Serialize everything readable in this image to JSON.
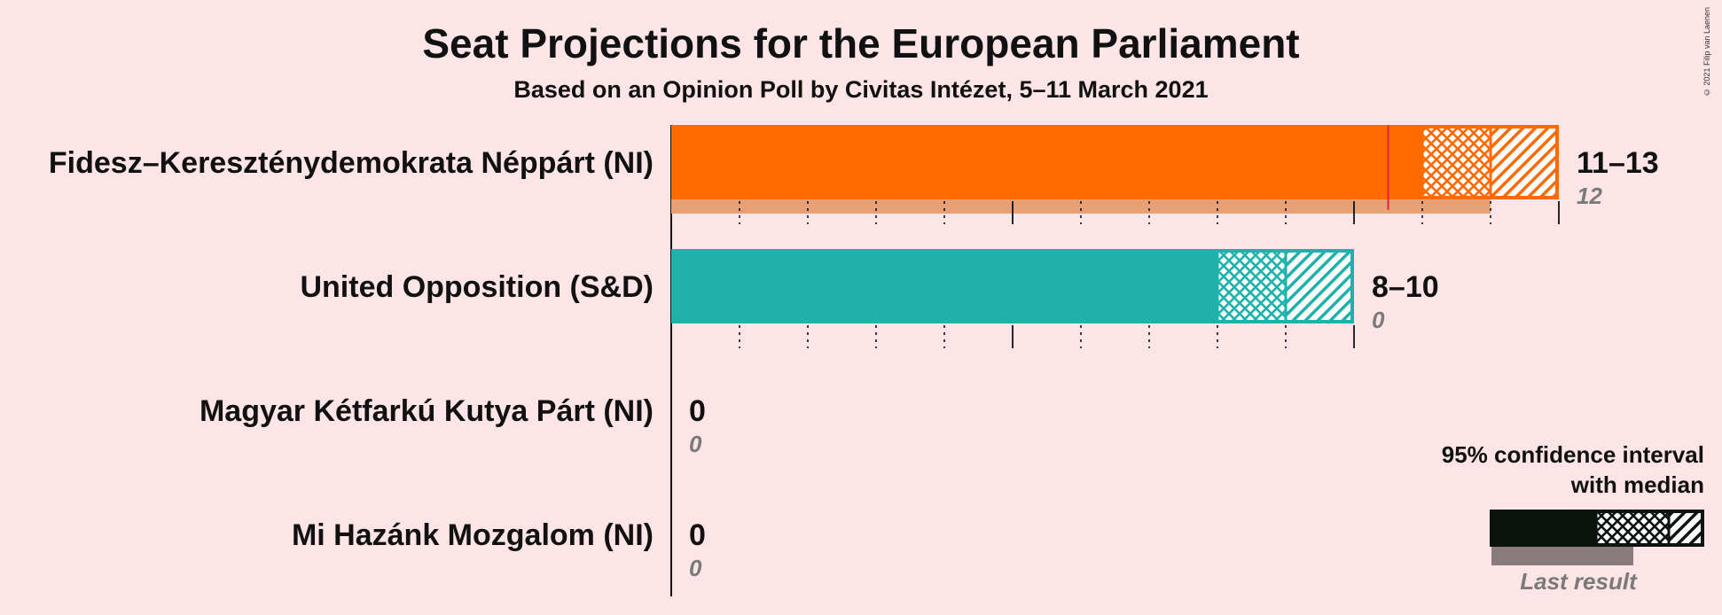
{
  "title": "Seat Projections for the European Parliament",
  "subtitle": "Based on an Opinion Poll by Civitas Intézet, 5–11 March 2021",
  "copyright": "© 2021 Filip van Laenen",
  "chart_data": {
    "type": "bar",
    "orientation": "horizontal",
    "x_range": [
      0,
      13
    ],
    "majority_line": 10.5,
    "parties": [
      {
        "name": "Fidesz–Kereszténydemokrata Néppárt (NI)",
        "low": 11,
        "median": 12,
        "high": 13,
        "last_result": 12,
        "range_label": "11–13",
        "last_label": "12",
        "color": "#ff6a00",
        "last_color": "#e8a076"
      },
      {
        "name": "United Opposition (S&D)",
        "low": 8,
        "median": 9,
        "high": 10,
        "last_result": 0,
        "range_label": "8–10",
        "last_label": "0",
        "color": "#20b2aa",
        "last_color": "#8fd3cf"
      },
      {
        "name": "Magyar Kétfarkú Kutya Párt (NI)",
        "low": 0,
        "median": 0,
        "high": 0,
        "last_result": 0,
        "range_label": "0",
        "last_label": "0",
        "color": "#888888",
        "last_color": "#bbbbbb"
      },
      {
        "name": "Mi Hazánk Mozgalom (NI)",
        "low": 0,
        "median": 0,
        "high": 0,
        "last_result": 0,
        "range_label": "0",
        "last_label": "0",
        "color": "#888888",
        "last_color": "#bbbbbb"
      }
    ],
    "legend": {
      "line1": "95% confidence interval",
      "line2": "with median",
      "last_result": "Last result",
      "color": "#0c1410",
      "last_color": "#8a7c7e"
    }
  }
}
